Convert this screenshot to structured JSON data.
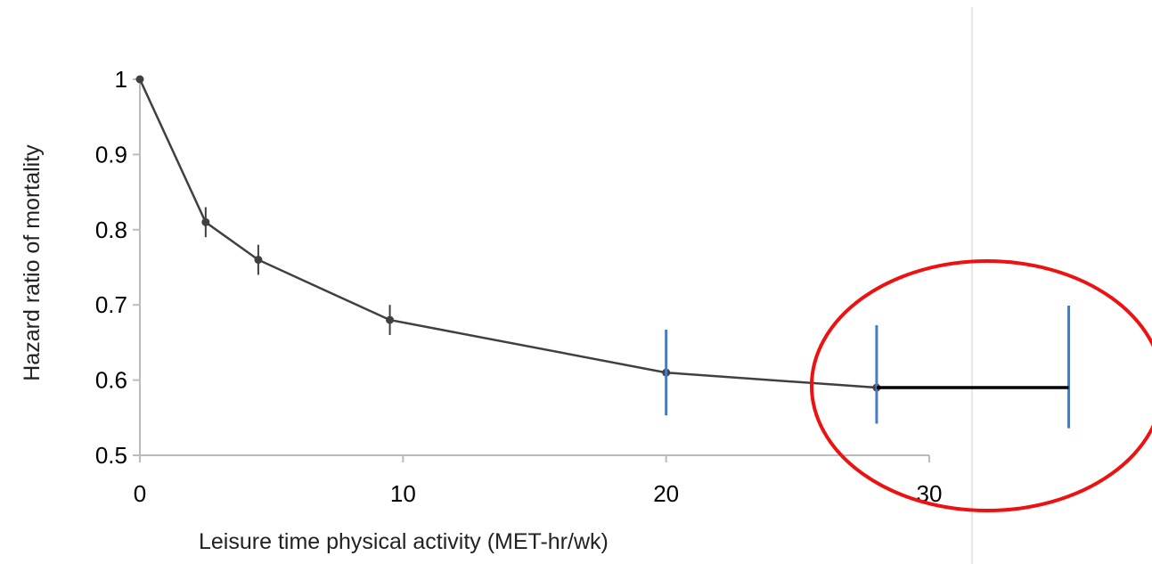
{
  "chart_data": {
    "type": "line",
    "title": "",
    "xlabel": "Leisure time physical activity (MET-hr/wk)",
    "ylabel": "Hazard ratio of mortality",
    "xlim": [
      0,
      30
    ],
    "ylim": [
      0.5,
      1.0
    ],
    "x_ticks": [
      "0",
      "10",
      "20",
      "30"
    ],
    "y_ticks": [
      "0.5",
      "0.6",
      "0.7",
      "0.8",
      "0.9",
      "1"
    ],
    "grid": false,
    "legend": "none",
    "series": [
      {
        "x": [
          0,
          2.5,
          4.5,
          9.5,
          20,
          28
        ],
        "y": [
          1.0,
          0.81,
          0.76,
          0.68,
          0.61,
          0.59
        ],
        "ci_low": [
          1.0,
          0.79,
          0.74,
          0.66,
          0.59,
          0.57
        ],
        "ci_high": [
          1.0,
          0.83,
          0.78,
          0.7,
          0.63,
          0.61
        ]
      }
    ],
    "annotations": {
      "extension_line": {
        "x0": 28,
        "x1": 35.3,
        "y": 0.59,
        "color": "#000000"
      },
      "marker_lines": [
        {
          "x": 20,
          "y_low": 0.553,
          "y_high": 0.667,
          "color": "#4a7bc0"
        },
        {
          "x": 28,
          "y_low": 0.542,
          "y_high": 0.673,
          "color": "#4a7bc0"
        },
        {
          "x": 35.3,
          "y_low": 0.536,
          "y_high": 0.699,
          "color": "#4a7bc0"
        }
      ],
      "highlight_ellipse": {
        "cx": 32.2,
        "cy": 0.59,
        "color": "#ee1111"
      },
      "divider_color": "#cccccc"
    },
    "colors": {
      "series_line": "#404040",
      "axis": "#bbbbbb"
    }
  }
}
